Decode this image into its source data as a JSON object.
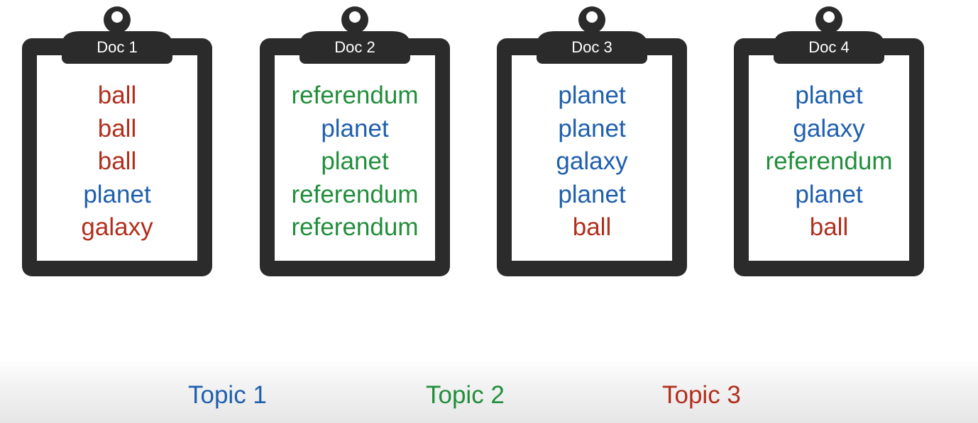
{
  "colors": {
    "topic1": "#1f5fae",
    "topic2": "#218e3b",
    "topic3": "#b22e1c",
    "clipboard": "#2b2b2b"
  },
  "docs": [
    {
      "label": "Doc 1",
      "words": [
        {
          "text": "ball",
          "topic": "topic3"
        },
        {
          "text": "ball",
          "topic": "topic3"
        },
        {
          "text": "ball",
          "topic": "topic3"
        },
        {
          "text": "planet",
          "topic": "topic1"
        },
        {
          "text": "galaxy",
          "topic": "topic3"
        }
      ]
    },
    {
      "label": "Doc 2",
      "words": [
        {
          "text": "referendum",
          "topic": "topic2"
        },
        {
          "text": "planet",
          "topic": "topic1"
        },
        {
          "text": "planet",
          "topic": "topic2"
        },
        {
          "text": "referendum",
          "topic": "topic2"
        },
        {
          "text": "referendum",
          "topic": "topic2"
        }
      ]
    },
    {
      "label": "Doc 3",
      "words": [
        {
          "text": "planet",
          "topic": "topic1"
        },
        {
          "text": "planet",
          "topic": "topic1"
        },
        {
          "text": "galaxy",
          "topic": "topic1"
        },
        {
          "text": "planet",
          "topic": "topic1"
        },
        {
          "text": "ball",
          "topic": "topic3"
        }
      ]
    },
    {
      "label": "Doc 4",
      "words": [
        {
          "text": "planet",
          "topic": "topic1"
        },
        {
          "text": "galaxy",
          "topic": "topic1"
        },
        {
          "text": "referendum",
          "topic": "topic2"
        },
        {
          "text": "planet",
          "topic": "topic1"
        },
        {
          "text": "ball",
          "topic": "topic3"
        }
      ]
    }
  ],
  "topics": [
    {
      "label": "Topic 1",
      "color_key": "topic1"
    },
    {
      "label": "Topic 2",
      "color_key": "topic2"
    },
    {
      "label": "Topic 3",
      "color_key": "topic3"
    }
  ]
}
